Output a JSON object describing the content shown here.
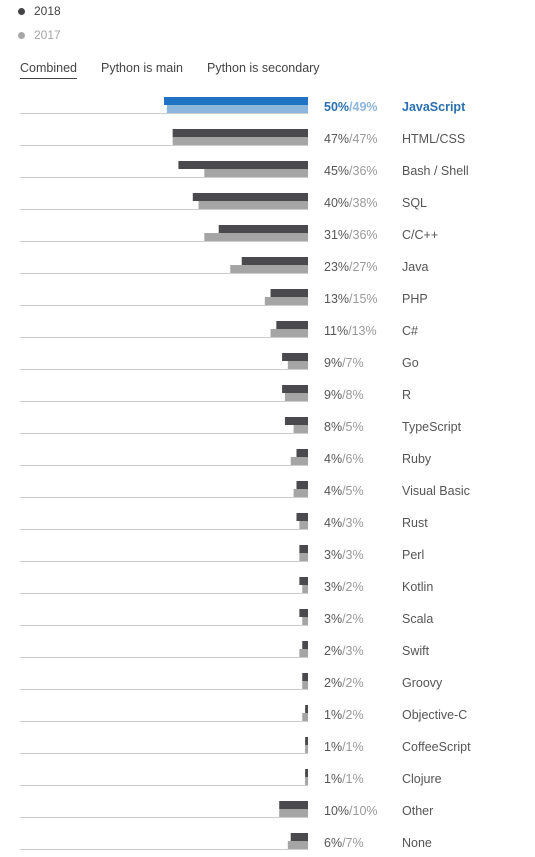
{
  "legend": [
    {
      "label": "2018",
      "color": "#444448"
    },
    {
      "label": "2017",
      "color": "#a7a7a7"
    }
  ],
  "tabs": [
    {
      "label": "Combined",
      "active": true
    },
    {
      "label": "Python is main",
      "active": false
    },
    {
      "label": "Python is secondary",
      "active": false
    }
  ],
  "colors": {
    "bar2018": "#4a4a4e",
    "bar2017": "#a5a5a5",
    "highlight2018": "#1f73c2",
    "highlight2017": "#8cb6dc",
    "highlightText": "#2a6fb0",
    "highlightTextLight": "#8cb6dc",
    "text": "#555555",
    "textLight": "#999999",
    "baseline": "#cccccc"
  },
  "chart_data": {
    "type": "bar",
    "orientation": "horizontal",
    "categories": [
      "JavaScript",
      "HTML/CSS",
      "Bash / Shell",
      "SQL",
      "C/C++",
      "Java",
      "PHP",
      "C#",
      "Go",
      "R",
      "TypeScript",
      "Ruby",
      "Visual Basic",
      "Rust",
      "Perl",
      "Kotlin",
      "Scala",
      "Swift",
      "Groovy",
      "Objective-C",
      "CoffeeScript",
      "Clojure",
      "Other",
      "None"
    ],
    "series": [
      {
        "name": "2018",
        "values": [
          50,
          47,
          45,
          40,
          31,
          23,
          13,
          11,
          9,
          9,
          8,
          4,
          4,
          4,
          3,
          3,
          3,
          2,
          2,
          1,
          1,
          1,
          10,
          6
        ]
      },
      {
        "name": "2017",
        "values": [
          49,
          47,
          36,
          38,
          36,
          27,
          15,
          13,
          7,
          8,
          5,
          6,
          5,
          3,
          3,
          2,
          2,
          3,
          2,
          2,
          1,
          1,
          10,
          7
        ]
      }
    ],
    "highlighted_category": "JavaScript",
    "value_format": "{2018}%/{2017}%"
  }
}
